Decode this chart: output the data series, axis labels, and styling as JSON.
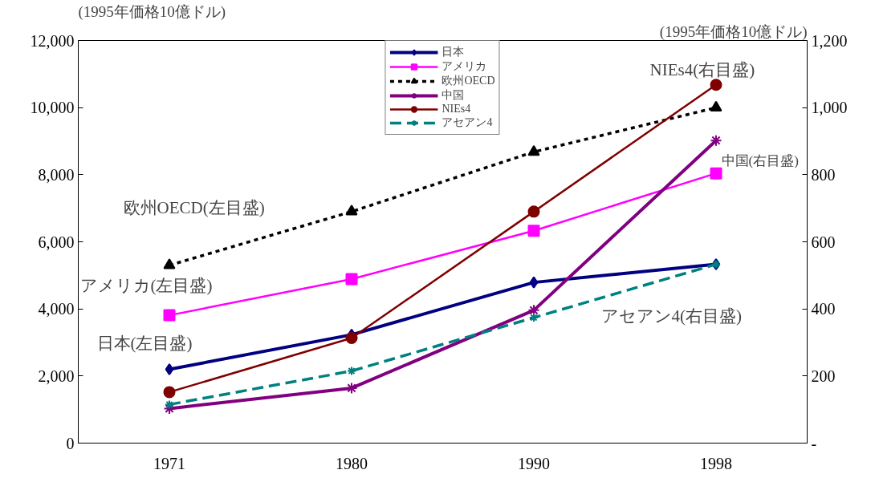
{
  "chart_data": {
    "type": "line",
    "ylabel": "(1995年価格10億ドル)",
    "y2label": "(1995年価格10億ドル)",
    "categories": [
      "1971",
      "1980",
      "1990",
      "1998"
    ],
    "ylim": [
      0,
      12000
    ],
    "yticks": [
      {
        "value": 0,
        "label": "0"
      },
      {
        "value": 2000,
        "label": "2,000"
      },
      {
        "value": 4000,
        "label": "4,000"
      },
      {
        "value": 6000,
        "label": "6,000"
      },
      {
        "value": 8000,
        "label": "8,000"
      },
      {
        "value": 10000,
        "label": "10,000"
      },
      {
        "value": 12000,
        "label": "12,000"
      }
    ],
    "y2lim": [
      0,
      1200
    ],
    "y2ticks": [
      {
        "value": 0,
        "label": "-"
      },
      200,
      400,
      600,
      800,
      {
        "value": 1000,
        "label": "1,000"
      },
      {
        "value": 1200,
        "label": "1,200"
      }
    ],
    "grid": false,
    "legend": "top",
    "series": [
      {
        "name": "日本",
        "color": "#000080",
        "marker": "diamond",
        "line_style": "solid",
        "values": [
          2200,
          3230,
          4790,
          5330
        ]
      },
      {
        "name": "アメリカ",
        "color": "#ff00ff",
        "marker": "square",
        "line_style": "solid",
        "values": [
          3810,
          4890,
          6330,
          8040
        ]
      },
      {
        "name": "欧州OECD",
        "color": "#000000",
        "marker": "triangle",
        "line_style": "dotted",
        "values": [
          5300,
          6900,
          8680,
          10000
        ]
      },
      {
        "name": "中国",
        "color": "#800080",
        "marker": "cross",
        "line_style": "solid",
        "axis": "y2",
        "values": [
          103,
          164,
          396,
          902
        ]
      },
      {
        "name": "NIEs4",
        "color": "#800000",
        "marker": "circle",
        "line_style": "solid",
        "axis": "y2",
        "values": [
          152,
          313,
          690,
          1068
        ]
      },
      {
        "name": "アセアン4",
        "color": "#008080",
        "marker": "cross",
        "line_style": "dashed",
        "axis": "y2",
        "values": [
          115,
          215,
          374,
          533
        ]
      }
    ],
    "annotations": [
      "欧州OECD(左目盛)",
      "アメリカ(左目盛)",
      "日本(左目盛)",
      "NIEs4(右目盛)",
      "中国(右目盛)",
      "アセアン4(右目盛)"
    ]
  }
}
